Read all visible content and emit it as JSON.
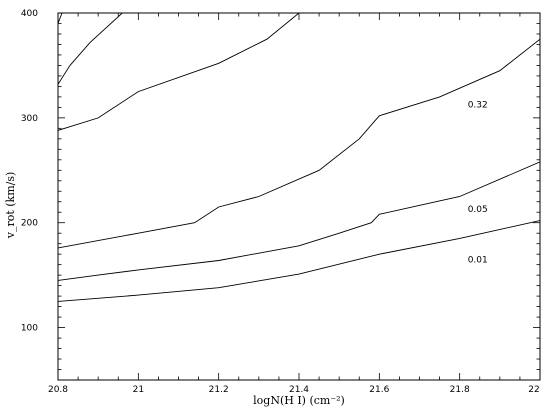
{
  "chart_data": {
    "type": "line",
    "title": "",
    "xlabel": "logN(H I) (cm⁻²)",
    "ylabel": "v_rot (km/s)",
    "xlim": [
      20.8,
      22.0
    ],
    "ylim": [
      50,
      400
    ],
    "x_tick_labels": [
      "20.8",
      "21",
      "21.2",
      "21.4",
      "21.6",
      "21.8",
      "22"
    ],
    "x_ticks": [
      20.8,
      21.0,
      21.2,
      21.4,
      21.6,
      21.8,
      22.0
    ],
    "y_tick_labels": [
      "100",
      "200",
      "300",
      "400"
    ],
    "y_ticks": [
      100,
      200,
      300,
      400
    ],
    "series": [
      {
        "name": "0.01",
        "values": [
          [
            20.8,
            125
          ],
          [
            21.0,
            131
          ],
          [
            21.2,
            138
          ],
          [
            21.4,
            151
          ],
          [
            21.6,
            170
          ],
          [
            21.8,
            185
          ],
          [
            22.0,
            202
          ]
        ]
      },
      {
        "name": "0.05",
        "values": [
          [
            20.8,
            145
          ],
          [
            20.9,
            150
          ],
          [
            21.0,
            155
          ],
          [
            21.2,
            164
          ],
          [
            21.4,
            178
          ],
          [
            21.5,
            190
          ],
          [
            21.58,
            200
          ],
          [
            21.6,
            208
          ],
          [
            21.8,
            225
          ],
          [
            22.0,
            258
          ]
        ]
      },
      {
        "name": "0.32",
        "values": [
          [
            20.8,
            176
          ],
          [
            21.0,
            190
          ],
          [
            21.14,
            200
          ],
          [
            21.2,
            215
          ],
          [
            21.3,
            225
          ],
          [
            21.45,
            250
          ],
          [
            21.55,
            280
          ],
          [
            21.6,
            302
          ],
          [
            21.75,
            320
          ],
          [
            21.9,
            345
          ],
          [
            22.0,
            375
          ]
        ]
      },
      {
        "name": "",
        "values": [
          [
            20.8,
            288
          ],
          [
            20.9,
            300
          ],
          [
            21.0,
            325
          ],
          [
            21.2,
            352
          ],
          [
            21.32,
            375
          ],
          [
            21.4,
            400
          ]
        ]
      },
      {
        "name": "",
        "values": [
          [
            20.8,
            332
          ],
          [
            20.83,
            350
          ],
          [
            20.88,
            372
          ],
          [
            20.96,
            400
          ]
        ]
      },
      {
        "name": "",
        "values": [
          [
            20.8,
            390
          ],
          [
            20.81,
            400
          ]
        ]
      }
    ],
    "grid": false,
    "legend": "none"
  }
}
